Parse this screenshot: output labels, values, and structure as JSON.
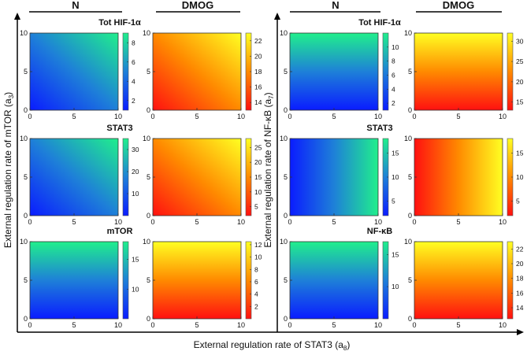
{
  "colors": {
    "n_map": [
      "#0a1cff",
      "#1e80d8",
      "#20ef8c"
    ],
    "dmog_map": [
      "#ff1010",
      "#ff8a00",
      "#ffff22"
    ],
    "frame": "#000000",
    "text": "#111111"
  },
  "figure": {
    "x_axis_label": "External regulation rate of STAT3 (a",
    "x_axis_sub": "8",
    "left_y_axis_label": "External regulation rate of  mTOR (a",
    "left_y_axis_sub": "3",
    "right_y_axis_label": "External regulation rate of  NF-κB (a",
    "right_y_axis_sub": "7",
    "column_n": "N",
    "column_dmog": "DMOG"
  },
  "chart_data": [
    {
      "type": "heatmap",
      "panel": "left-n-tot-hif",
      "group": "left",
      "row": 0,
      "condition": "N",
      "title": "Tot HIF-1α",
      "xlim": [
        0,
        10
      ],
      "ylim": [
        0,
        10
      ],
      "x_ticks": [
        "0",
        "5",
        "10"
      ],
      "y_ticks": [
        "0",
        "5",
        "10"
      ],
      "colorbar_range": [
        1,
        9
      ],
      "colorbar_ticks": [
        "8",
        "6",
        "4",
        "2"
      ],
      "gradient_direction": "bottom-left to top-right",
      "colormap": "blue-green"
    },
    {
      "type": "heatmap",
      "panel": "left-dmog-tot-hif",
      "group": "left",
      "row": 0,
      "condition": "DMOG",
      "title": "",
      "xlim": [
        0,
        10
      ],
      "ylim": [
        0,
        10
      ],
      "x_ticks": [
        "0",
        "5",
        "10"
      ],
      "y_ticks": [
        "0",
        "5",
        "10"
      ],
      "colorbar_range": [
        13,
        23
      ],
      "colorbar_ticks": [
        "22",
        "20",
        "18",
        "16",
        "14"
      ],
      "gradient_direction": "bottom-left to top-right",
      "colormap": "red-yellow"
    },
    {
      "type": "heatmap",
      "panel": "left-n-stat3",
      "group": "left",
      "row": 1,
      "condition": "N",
      "title": "STAT3",
      "xlim": [
        0,
        10
      ],
      "ylim": [
        0,
        10
      ],
      "x_ticks": [
        "0",
        "5",
        "10"
      ],
      "y_ticks": [
        "0",
        "5",
        "10"
      ],
      "colorbar_range": [
        0,
        35
      ],
      "colorbar_ticks": [
        "30",
        "20",
        "10"
      ],
      "gradient_direction": "bottom-left to top-right",
      "colormap": "blue-green"
    },
    {
      "type": "heatmap",
      "panel": "left-dmog-stat3",
      "group": "left",
      "row": 1,
      "condition": "DMOG",
      "title": "",
      "xlim": [
        0,
        10
      ],
      "ylim": [
        0,
        10
      ],
      "x_ticks": [
        "0",
        "5",
        "10"
      ],
      "y_ticks": [
        "0",
        "5",
        "10"
      ],
      "colorbar_range": [
        2,
        28
      ],
      "colorbar_ticks": [
        "25",
        "20",
        "15",
        "10",
        "5"
      ],
      "gradient_direction": "bottom-left to top-right",
      "colormap": "red-yellow"
    },
    {
      "type": "heatmap",
      "panel": "left-n-mtor",
      "group": "left",
      "row": 2,
      "condition": "N",
      "title": "mTOR",
      "xlim": [
        0,
        10
      ],
      "ylim": [
        0,
        10
      ],
      "x_ticks": [
        "0",
        "5",
        "10"
      ],
      "y_ticks": [
        "0",
        "5",
        "10"
      ],
      "colorbar_range": [
        5,
        18
      ],
      "colorbar_ticks": [
        "15",
        "10"
      ],
      "gradient_direction": "bottom to top",
      "colormap": "blue-green"
    },
    {
      "type": "heatmap",
      "panel": "left-dmog-mtor",
      "group": "left",
      "row": 2,
      "condition": "DMOG",
      "title": "",
      "xlim": [
        0,
        10
      ],
      "ylim": [
        0,
        10
      ],
      "x_ticks": [
        "0",
        "5",
        "10"
      ],
      "y_ticks": [
        "0",
        "5",
        "10"
      ],
      "colorbar_range": [
        0,
        12.5
      ],
      "colorbar_ticks": [
        "12",
        "10",
        "8",
        "6",
        "4",
        "2"
      ],
      "gradient_direction": "bottom to top",
      "colormap": "red-yellow"
    },
    {
      "type": "heatmap",
      "panel": "right-n-tot-hif",
      "group": "right",
      "row": 0,
      "condition": "N",
      "title": "Tot HIF-1α",
      "xlim": [
        0,
        10
      ],
      "ylim": [
        0,
        10
      ],
      "x_ticks": [
        "0",
        "5",
        "10"
      ],
      "y_ticks": [
        "0",
        "5",
        "10"
      ],
      "colorbar_range": [
        1,
        12
      ],
      "colorbar_ticks": [
        "10",
        "8",
        "6",
        "4",
        "2"
      ],
      "gradient_direction": "bottom to top",
      "colormap": "blue-green"
    },
    {
      "type": "heatmap",
      "panel": "right-dmog-tot-hif",
      "group": "right",
      "row": 0,
      "condition": "DMOG",
      "title": "",
      "xlim": [
        0,
        10
      ],
      "ylim": [
        0,
        10
      ],
      "x_ticks": [
        "0",
        "5",
        "10"
      ],
      "y_ticks": [
        "0",
        "5",
        "10"
      ],
      "colorbar_range": [
        13,
        32
      ],
      "colorbar_ticks": [
        "30",
        "25",
        "20",
        "15"
      ],
      "gradient_direction": "bottom to top",
      "colormap": "red-yellow"
    },
    {
      "type": "heatmap",
      "panel": "right-n-stat3",
      "group": "right",
      "row": 1,
      "condition": "N",
      "title": "STAT3",
      "xlim": [
        0,
        10
      ],
      "ylim": [
        0,
        10
      ],
      "x_ticks": [
        "0",
        "5",
        "10"
      ],
      "y_ticks": [
        "0",
        "5",
        "10"
      ],
      "colorbar_range": [
        2,
        18
      ],
      "colorbar_ticks": [
        "15",
        "10",
        "5"
      ],
      "gradient_direction": "left to right",
      "colormap": "blue-green"
    },
    {
      "type": "heatmap",
      "panel": "right-dmog-stat3",
      "group": "right",
      "row": 1,
      "condition": "DMOG",
      "title": "",
      "xlim": [
        0,
        10
      ],
      "ylim": [
        0,
        10
      ],
      "x_ticks": [
        "0",
        "5",
        "10"
      ],
      "y_ticks": [
        "0",
        "5",
        "10"
      ],
      "colorbar_range": [
        2,
        18
      ],
      "colorbar_ticks": [
        "15",
        "10",
        "5"
      ],
      "gradient_direction": "left to right",
      "colormap": "red-yellow"
    },
    {
      "type": "heatmap",
      "panel": "right-n-nfkb",
      "group": "right",
      "row": 2,
      "condition": "N",
      "title": "NF-κB",
      "xlim": [
        0,
        10
      ],
      "ylim": [
        0,
        10
      ],
      "x_ticks": [
        "0",
        "5",
        "10"
      ],
      "y_ticks": [
        "0",
        "5",
        "10"
      ],
      "colorbar_range": [
        5,
        17
      ],
      "colorbar_ticks": [
        "15",
        "10"
      ],
      "gradient_direction": "bottom to top",
      "colormap": "blue-green"
    },
    {
      "type": "heatmap",
      "panel": "right-dmog-nfkb",
      "group": "right",
      "row": 2,
      "condition": "DMOG",
      "title": "",
      "xlim": [
        0,
        10
      ],
      "ylim": [
        0,
        10
      ],
      "x_ticks": [
        "0",
        "5",
        "10"
      ],
      "y_ticks": [
        "0",
        "5",
        "10"
      ],
      "colorbar_range": [
        12.5,
        23
      ],
      "colorbar_ticks": [
        "22",
        "20",
        "18",
        "16",
        "14"
      ],
      "gradient_direction": "bottom to top",
      "colormap": "red-yellow"
    }
  ]
}
